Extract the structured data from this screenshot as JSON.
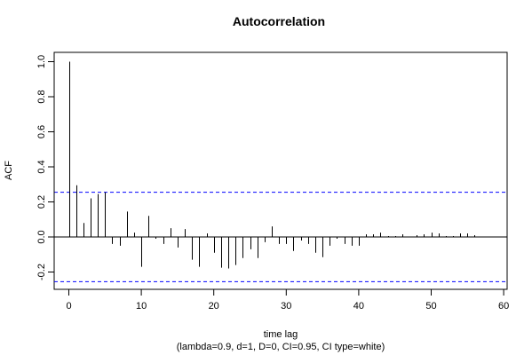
{
  "chart_data": {
    "type": "bar",
    "title": "Autocorrelation",
    "xlabel": "time lag",
    "subtitle": "(lambda=0.9, d=1, D=0, CI=0.95, CI type=white)",
    "ylabel": "ACF",
    "xlim": [
      -2,
      60
    ],
    "ylim": [
      -0.3,
      1.05
    ],
    "x_ticks": [
      "0",
      "10",
      "20",
      "30",
      "40",
      "50",
      "60"
    ],
    "y_ticks": [
      "-0.2",
      "0.0",
      "0.2",
      "0.4",
      "0.6",
      "0.8",
      "1.0"
    ],
    "conf_limits": [
      0.255,
      -0.255
    ],
    "conf_line_color": "#0000ff",
    "zero_line": true,
    "grid": false,
    "lags": [
      0,
      1,
      2,
      3,
      4,
      5,
      6,
      7,
      8,
      9,
      10,
      11,
      12,
      13,
      14,
      15,
      16,
      17,
      18,
      19,
      20,
      21,
      22,
      23,
      24,
      25,
      26,
      27,
      28,
      29,
      30,
      31,
      32,
      33,
      34,
      35,
      36,
      37,
      38,
      39,
      40,
      41,
      42,
      43,
      44,
      45,
      46,
      47,
      48,
      49,
      50,
      51,
      52,
      53,
      54,
      55,
      56
    ],
    "values": [
      1.0,
      0.295,
      0.08,
      0.22,
      0.245,
      0.255,
      -0.04,
      -0.05,
      0.145,
      0.025,
      -0.17,
      0.12,
      -0.01,
      -0.04,
      0.05,
      -0.06,
      0.045,
      -0.13,
      -0.17,
      0.02,
      -0.09,
      -0.175,
      -0.18,
      -0.16,
      -0.12,
      -0.07,
      -0.12,
      -0.03,
      0.06,
      -0.04,
      -0.04,
      -0.08,
      -0.02,
      -0.04,
      -0.09,
      -0.115,
      -0.05,
      -0.01,
      -0.04,
      -0.05,
      -0.05,
      0.015,
      0.015,
      0.025,
      0.005,
      0.005,
      0.015,
      0.0,
      0.01,
      0.015,
      0.025,
      0.02,
      0.005,
      0.005,
      0.02,
      0.02,
      0.01
    ]
  }
}
